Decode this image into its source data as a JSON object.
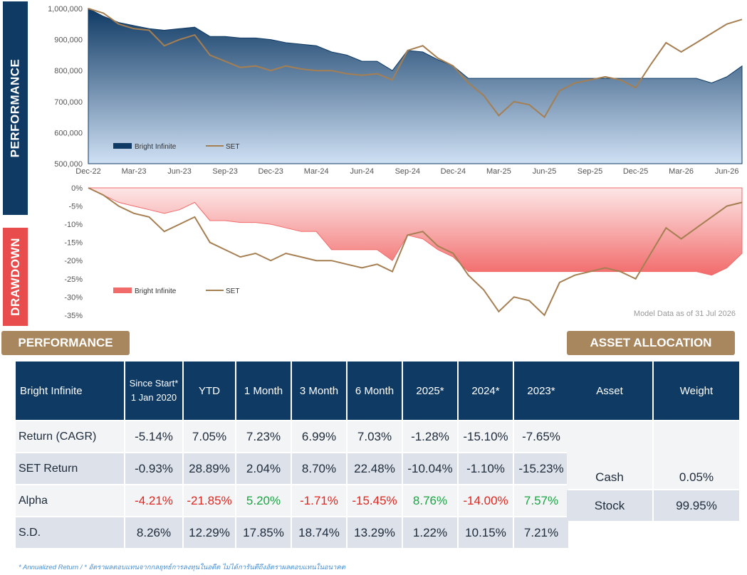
{
  "side_labels": {
    "performance": "PERFORMANCE",
    "drawdown": "DRAWDOWN"
  },
  "chart_data": [
    {
      "type": "area",
      "id": "performance",
      "x": [
        "Dec-22",
        "Jan-23",
        "Feb-23",
        "Mar-23",
        "Apr-23",
        "May-23",
        "Jun-23",
        "Jul-23",
        "Aug-23",
        "Sep-23",
        "Oct-23",
        "Nov-23",
        "Dec-23",
        "Jan-24",
        "Feb-24",
        "Mar-24",
        "Apr-24",
        "May-24",
        "Jun-24",
        "Jul-24",
        "Aug-24",
        "Sep-24",
        "Oct-24",
        "Nov-24",
        "Dec-24",
        "Jan-25",
        "Feb-25",
        "Mar-25",
        "Apr-25",
        "May-25",
        "Jun-25",
        "Jul-25",
        "Aug-25",
        "Sep-25",
        "Oct-25",
        "Nov-25",
        "Dec-25",
        "Jan-26",
        "Feb-26",
        "Mar-26",
        "Apr-26",
        "May-26",
        "Jun-26",
        "Jul-26"
      ],
      "series": [
        {
          "name": "Bright Infinite",
          "values": [
            1000000,
            975000,
            955000,
            945000,
            935000,
            930000,
            935000,
            940000,
            910000,
            910000,
            905000,
            905000,
            900000,
            890000,
            885000,
            880000,
            860000,
            850000,
            830000,
            830000,
            800000,
            865000,
            860000,
            835000,
            815000,
            775000,
            775000,
            775000,
            775000,
            775000,
            775000,
            775000,
            775000,
            775000,
            775000,
            775000,
            775000,
            775000,
            775000,
            775000,
            775000,
            760000,
            780000,
            815000
          ]
        },
        {
          "name": "SET",
          "values": [
            1000000,
            985000,
            950000,
            935000,
            930000,
            880000,
            900000,
            915000,
            850000,
            830000,
            810000,
            815000,
            800000,
            815000,
            805000,
            800000,
            800000,
            790000,
            785000,
            790000,
            770000,
            865000,
            880000,
            840000,
            815000,
            760000,
            720000,
            655000,
            700000,
            690000,
            650000,
            735000,
            760000,
            770000,
            780000,
            770000,
            745000,
            820000,
            890000,
            860000,
            890000,
            920000,
            950000,
            965000
          ]
        }
      ],
      "ylim": [
        500000,
        1000000
      ],
      "yticks": [
        "1,000,000",
        "900,000",
        "800,000",
        "700,000",
        "600,000",
        "500,000"
      ],
      "xticks": [
        "Dec-22",
        "Mar-23",
        "Jun-23",
        "Sep-23",
        "Dec-23",
        "Mar-24",
        "Jun-24",
        "Sep-24",
        "Dec-24",
        "Mar-25",
        "Jun-25",
        "Sep-25",
        "Dec-25",
        "Mar-26",
        "Jun-26"
      ],
      "legend": [
        "Bright Infinite",
        "SET"
      ],
      "legend_position": "bottom-left",
      "colors": {
        "fund_top": "#0f3a64",
        "fund_bottom": "#c9ddf3",
        "set": "#a57f52"
      }
    },
    {
      "type": "area",
      "id": "drawdown",
      "x": [
        "Dec-22",
        "Jan-23",
        "Feb-23",
        "Mar-23",
        "Apr-23",
        "May-23",
        "Jun-23",
        "Jul-23",
        "Aug-23",
        "Sep-23",
        "Oct-23",
        "Nov-23",
        "Dec-23",
        "Jan-24",
        "Feb-24",
        "Mar-24",
        "Apr-24",
        "May-24",
        "Jun-24",
        "Jul-24",
        "Aug-24",
        "Sep-24",
        "Oct-24",
        "Nov-24",
        "Dec-24",
        "Jan-25",
        "Feb-25",
        "Mar-25",
        "Apr-25",
        "May-25",
        "Jun-25",
        "Jul-25",
        "Aug-25",
        "Sep-25",
        "Oct-25",
        "Nov-25",
        "Dec-25",
        "Jan-26",
        "Feb-26",
        "Mar-26",
        "Apr-26",
        "May-26",
        "Jun-26",
        "Jul-26"
      ],
      "series": [
        {
          "name": "Bright Infinite",
          "values": [
            0,
            -2,
            -4,
            -5,
            -6,
            -7,
            -6,
            -4,
            -9,
            -9,
            -9.5,
            -9.5,
            -10,
            -11,
            -12,
            -12,
            -17,
            -17,
            -17,
            -17,
            -20,
            -13,
            -14,
            -17,
            -19,
            -23,
            -23,
            -23,
            -23,
            -23,
            -23,
            -23,
            -23,
            -23,
            -23,
            -23,
            -23,
            -23,
            -23,
            -23,
            -23,
            -24,
            -22,
            -18
          ]
        },
        {
          "name": "SET",
          "values": [
            0,
            -2,
            -5,
            -7,
            -8,
            -12,
            -10,
            -8,
            -15,
            -17,
            -19,
            -18,
            -20,
            -18,
            -19,
            -20,
            -20,
            -21,
            -22,
            -21,
            -23,
            -13,
            -12,
            -16,
            -18,
            -24,
            -28,
            -34,
            -30,
            -31,
            -35,
            -26,
            -24,
            -23,
            -22,
            -23,
            -25,
            -18,
            -11,
            -14,
            -11,
            -8,
            -5,
            -4
          ]
        }
      ],
      "ylim": [
        -36,
        0
      ],
      "yticks": [
        "0%",
        "-5%",
        "-10%",
        "-15%",
        "-20%",
        "-25%",
        "-30%",
        "-35%"
      ],
      "legend": [
        "Bright Infinite",
        "SET"
      ],
      "legend_position": "bottom-left",
      "note": "Model Data as of 31 Jul 2026",
      "colors": {
        "fund": "#f26b6b",
        "set": "#a57f52"
      }
    }
  ],
  "performance_section": {
    "title": "PERFORMANCE",
    "corner_header": "Bright Infinite",
    "columns": [
      "Since Start*\n1 Jan 2020",
      "YTD",
      "1 Month",
      "3 Month",
      "6 Month",
      "2025*",
      "2024*",
      "2023*"
    ],
    "rows": [
      {
        "label": "Return (CAGR)",
        "values": [
          "-5.14%",
          "7.05%",
          "7.23%",
          "6.99%",
          "7.03%",
          "-1.28%",
          "-15.10%",
          "-7.65%"
        ]
      },
      {
        "label": "SET Return",
        "values": [
          "-0.93%",
          "28.89%",
          "2.04%",
          "8.70%",
          "22.48%",
          "-10.04%",
          "-1.10%",
          "-15.23%"
        ]
      },
      {
        "label": "Alpha",
        "values": [
          "-4.21%",
          "-21.85%",
          "5.20%",
          "-1.71%",
          "-15.45%",
          "8.76%",
          "-14.00%",
          "7.57%"
        ]
      },
      {
        "label": "S.D.",
        "values": [
          "8.26%",
          "12.29%",
          "17.85%",
          "18.74%",
          "13.29%",
          "1.22%",
          "10.15%",
          "7.21%"
        ]
      }
    ]
  },
  "allocation_section": {
    "title": "ASSET ALLOCATION",
    "columns": [
      "Asset",
      "Weight"
    ],
    "rows": [
      {
        "asset": "Cash",
        "weight": "0.05%"
      },
      {
        "asset": "Stock",
        "weight": "99.95%"
      }
    ]
  },
  "colors": {
    "navy": "#0f3a64",
    "tan": "#a8875e",
    "red": "#e84c4c",
    "negative": "#e0261f",
    "positive": "#18a542"
  },
  "footnote": "* Annualized Return  /  * อัตราผลตอบแทนจากกลยุทธ์การลงทุนในอดีต ไม่ได้การันตีถึงอัตราผลตอบแทนในอนาคต"
}
